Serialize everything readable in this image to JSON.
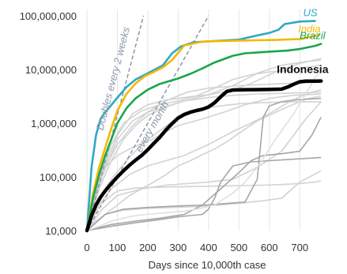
{
  "chart_data": {
    "type": "line",
    "title": "",
    "xlabel": "Days since 10,000th case",
    "ylabel": "",
    "y_scale": "log",
    "xlim": [
      0,
      780
    ],
    "ylim": [
      10000,
      100000000
    ],
    "x_ticks": [
      0,
      100,
      200,
      300,
      400,
      500,
      600,
      700
    ],
    "x_tick_labels": [
      "0",
      "100",
      "200",
      "300",
      "400",
      "500",
      "600",
      "700"
    ],
    "y_ticks": [
      10000,
      100000,
      1000000,
      10000000,
      100000000
    ],
    "y_tick_labels": [
      "10,000",
      "100,000",
      "1,000,000",
      "10,000,000",
      "100,000,000"
    ],
    "grid": "vertical",
    "annotations": {
      "doubles_2_weeks": "Doubles every 2 weeks",
      "every_month": "every month"
    },
    "reference_lines": [
      {
        "id": "doubles_2_weeks",
        "color": "#8a97a8",
        "x": [
          0,
          186
        ],
        "y": [
          10000,
          100000000
        ]
      },
      {
        "id": "every_month",
        "color": "#8a97a8",
        "x": [
          0,
          400
        ],
        "y": [
          10000,
          100000000
        ]
      }
    ],
    "series": [
      {
        "name": "US",
        "color": "#2fa8c6",
        "x": [
          0,
          15,
          30,
          45,
          60,
          75,
          100,
          130,
          160,
          200,
          250,
          280,
          310,
          350,
          420,
          500,
          560,
          600,
          630,
          650,
          700,
          750
        ],
        "y": [
          10000,
          150000,
          600000,
          1200000,
          1600000,
          2000000,
          3000000,
          4700000,
          6500000,
          8500000,
          12000000,
          20000000,
          27000000,
          32000000,
          34000000,
          36000000,
          43000000,
          48000000,
          55000000,
          70000000,
          78000000,
          80000000
        ]
      },
      {
        "name": "India",
        "color": "#f5b800",
        "x": [
          0,
          20,
          40,
          60,
          80,
          100,
          130,
          160,
          190,
          220,
          250,
          280,
          320,
          380,
          440,
          500,
          560,
          620,
          700,
          760
        ],
        "y": [
          10000,
          50000,
          150000,
          350000,
          800000,
          1700000,
          3500000,
          5500000,
          7500000,
          9000000,
          11000000,
          15000000,
          28000000,
          33000000,
          34000000,
          34500000,
          35000000,
          35500000,
          37000000,
          43000000
        ]
      },
      {
        "name": "Brazil",
        "color": "#19a64a",
        "x": [
          0,
          20,
          40,
          60,
          80,
          100,
          130,
          160,
          200,
          240,
          300,
          340,
          380,
          420,
          480,
          520,
          600,
          660,
          700,
          750,
          770
        ],
        "y": [
          10000,
          40000,
          110000,
          250000,
          500000,
          1000000,
          1900000,
          2900000,
          4200000,
          5400000,
          6800000,
          8300000,
          10500000,
          13500000,
          18000000,
          20000000,
          21500000,
          22500000,
          24000000,
          27500000,
          30000000
        ]
      },
      {
        "name": "Indonesia",
        "color": "#000000",
        "x": [
          0,
          15,
          30,
          45,
          60,
          80,
          100,
          120,
          140,
          160,
          180,
          200,
          220,
          240,
          260,
          280,
          300,
          320,
          340,
          360,
          380,
          400,
          420,
          440,
          460,
          480,
          520,
          560,
          600,
          640,
          660,
          680,
          700,
          720,
          750,
          770
        ],
        "y": [
          10000,
          19000,
          30000,
          42000,
          55000,
          75000,
          100000,
          130000,
          165000,
          205000,
          250000,
          320000,
          420000,
          550000,
          750000,
          980000,
          1250000,
          1450000,
          1600000,
          1720000,
          1820000,
          2000000,
          2400000,
          3100000,
          3900000,
          4150000,
          4200000,
          4220000,
          4250000,
          4300000,
          4700000,
          5300000,
          5900000,
          6050000,
          6080000,
          6100000
        ]
      }
    ],
    "background_series_color": "#d2d2d2",
    "background_series": [
      {
        "x": [
          0,
          40,
          80,
          120,
          160,
          200,
          260,
          320,
          400,
          480,
          560,
          640,
          720,
          770
        ],
        "y": [
          10000,
          60000,
          200000,
          500000,
          900000,
          1400000,
          2000000,
          2600000,
          3000000,
          3300000,
          3500000,
          3600000,
          3700000,
          3800000
        ]
      },
      {
        "x": [
          0,
          50,
          100,
          150,
          200,
          260,
          320,
          400,
          470,
          540,
          620,
          700,
          770
        ],
        "y": [
          10000,
          120000,
          600000,
          1500000,
          2200000,
          2700000,
          3000000,
          3400000,
          4000000,
          5500000,
          9000000,
          13000000,
          16000000
        ]
      },
      {
        "x": [
          0,
          50,
          100,
          150,
          200,
          300,
          400,
          480,
          560,
          640,
          720,
          770
        ],
        "y": [
          10000,
          100000,
          500000,
          1100000,
          1600000,
          2400000,
          3400000,
          5000000,
          8500000,
          12000000,
          14000000,
          15000000
        ]
      },
      {
        "x": [
          0,
          30,
          60,
          100,
          150,
          200,
          260,
          330,
          400,
          500,
          600,
          700,
          770
        ],
        "y": [
          10000,
          50000,
          150000,
          400000,
          900000,
          1600000,
          2600000,
          3800000,
          4500000,
          5000000,
          5300000,
          5600000,
          5800000
        ]
      },
      {
        "x": [
          0,
          40,
          80,
          130,
          180,
          240,
          300,
          380,
          450,
          520,
          600,
          680,
          770
        ],
        "y": [
          10000,
          40000,
          90000,
          200000,
          400000,
          600000,
          900000,
          1200000,
          1600000,
          2200000,
          2900000,
          3300000,
          3500000
        ]
      },
      {
        "x": [
          0,
          30,
          60,
          100,
          140,
          180,
          220,
          300,
          380,
          440,
          500,
          580,
          660,
          720,
          770
        ],
        "y": [
          10000,
          70000,
          150000,
          250000,
          330000,
          420000,
          600000,
          1300000,
          1900000,
          2100000,
          2300000,
          2400000,
          2500000,
          2500000,
          2500000
        ]
      },
      {
        "x": [
          0,
          40,
          80,
          140,
          200,
          260,
          320,
          400,
          480,
          540,
          600,
          660,
          720,
          770
        ],
        "y": [
          10000,
          30000,
          60000,
          110000,
          160000,
          200000,
          250000,
          400000,
          700000,
          1000000,
          1500000,
          2400000,
          3500000,
          4200000
        ]
      },
      {
        "x": [
          0,
          50,
          100,
          180,
          260,
          330,
          400,
          480,
          560,
          640,
          720,
          770
        ],
        "y": [
          10000,
          25000,
          45000,
          60000,
          70000,
          75000,
          80000,
          90000,
          150000,
          300000,
          1200000,
          2500000
        ]
      },
      {
        "x": [
          0,
          40,
          100,
          160,
          220,
          280,
          340,
          400,
          460,
          520,
          580,
          640,
          700,
          750,
          770
        ],
        "y": [
          10000,
          30000,
          55000,
          62000,
          64000,
          65000,
          66000,
          67000,
          68000,
          69000,
          70000,
          72000,
          75000,
          80000,
          85000
        ]
      },
      {
        "x": [
          0,
          60,
          120,
          200,
          280,
          360,
          440,
          520,
          580,
          640,
          700,
          770
        ],
        "y": [
          10000,
          20000,
          24000,
          26000,
          27000,
          28000,
          30000,
          33000,
          36000,
          40000,
          80000,
          130000
        ]
      },
      {
        "x": [
          0,
          30,
          60,
          100,
          140,
          180,
          220,
          260,
          300,
          340,
          380,
          420,
          460,
          500,
          560,
          640,
          720,
          770
        ],
        "y": [
          10000,
          15000,
          20000,
          30000,
          45000,
          60000,
          80000,
          110000,
          160000,
          200000,
          260000,
          330000,
          450000,
          650000,
          1100000,
          1800000,
          2800000,
          3200000
        ]
      },
      {
        "x": [
          0,
          40,
          80,
          120,
          180,
          240,
          300,
          360,
          420,
          480,
          540,
          600,
          660,
          720,
          770
        ],
        "y": [
          10000,
          90000,
          400000,
          1000000,
          1700000,
          2200000,
          2600000,
          3200000,
          4500000,
          6500000,
          8000000,
          9000000,
          9500000,
          11000000,
          12000000
        ]
      }
    ],
    "accent_series": [
      {
        "color": "#a6a6a6",
        "x": [
          0,
          60,
          120,
          200,
          260,
          320,
          400,
          460,
          520,
          560,
          580,
          600,
          640,
          680,
          720,
          770
        ],
        "y": [
          10000,
          20000,
          25000,
          27000,
          28000,
          29000,
          30000,
          32000,
          34000,
          90000,
          1300000,
          2100000,
          2500000,
          2700000,
          2800000,
          2900000
        ]
      },
      {
        "color": "#a6a6a6",
        "x": [
          0,
          80,
          160,
          240,
          300,
          340,
          380,
          400,
          420,
          440,
          480,
          540,
          600,
          660,
          720,
          770
        ],
        "y": [
          10000,
          12000,
          14000,
          16000,
          18000,
          19000,
          20000,
          25000,
          40000,
          80000,
          160000,
          190000,
          200000,
          210000,
          220000,
          230000
        ]
      },
      {
        "color": "#a6a6a6",
        "x": [
          0,
          80,
          160,
          240,
          320,
          380,
          440,
          500,
          540,
          580,
          640,
          700,
          740,
          760,
          770
        ],
        "y": [
          10000,
          13000,
          15000,
          17000,
          20000,
          30000,
          60000,
          120000,
          200000,
          250000,
          270000,
          300000,
          600000,
          1000000,
          1300000
        ]
      },
      {
        "color": "#e0e0e0",
        "x": [
          0,
          40,
          80,
          120,
          160,
          200,
          240,
          280,
          320,
          360,
          420,
          480,
          520,
          560,
          620,
          680,
          720,
          750,
          770
        ],
        "y": [
          10000,
          12000,
          15000,
          17000,
          19000,
          20000,
          21000,
          22000,
          23000,
          25000,
          30000,
          50000,
          80000,
          150000,
          500000,
          1500000,
          3500000,
          7000000,
          9000000
        ]
      }
    ]
  }
}
